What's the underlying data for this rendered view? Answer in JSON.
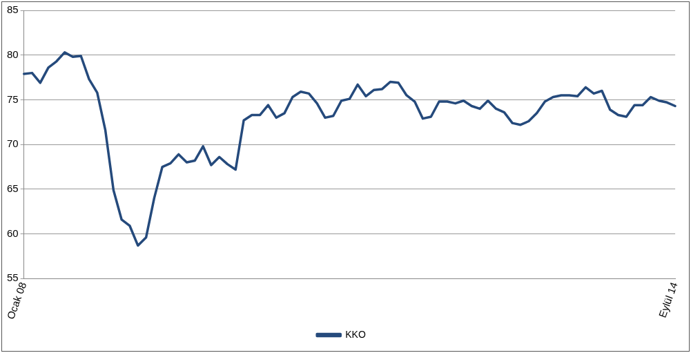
{
  "chart_data": {
    "type": "line",
    "categories": [
      "Ocak 08",
      null,
      null,
      null,
      null,
      null,
      null,
      null,
      null,
      null,
      null,
      null,
      null,
      null,
      null,
      null,
      null,
      null,
      null,
      null,
      null,
      null,
      null,
      null,
      null,
      null,
      null,
      null,
      null,
      null,
      null,
      null,
      null,
      null,
      null,
      null,
      null,
      null,
      null,
      null,
      null,
      null,
      null,
      null,
      null,
      null,
      null,
      null,
      null,
      null,
      null,
      null,
      null,
      null,
      null,
      null,
      null,
      null,
      null,
      null,
      null,
      null,
      null,
      null,
      null,
      null,
      null,
      null,
      null,
      null,
      null,
      null,
      null,
      null,
      null,
      null,
      null,
      null,
      null,
      null,
      "Eylül 14"
    ],
    "series": [
      {
        "name": "KKO",
        "color": "#254a7c",
        "values": [
          77.9,
          78.0,
          76.9,
          78.6,
          79.3,
          80.3,
          79.8,
          79.9,
          77.3,
          75.8,
          71.6,
          64.9,
          61.6,
          60.9,
          58.7,
          59.6,
          64.0,
          67.5,
          67.9,
          68.9,
          68.0,
          68.2,
          69.8,
          67.7,
          68.6,
          67.8,
          67.2,
          72.7,
          73.3,
          73.3,
          74.4,
          73.0,
          73.5,
          75.3,
          75.9,
          75.7,
          74.6,
          73.0,
          73.2,
          74.9,
          75.1,
          76.7,
          75.4,
          76.1,
          76.2,
          77.0,
          76.9,
          75.5,
          74.8,
          72.9,
          73.1,
          74.8,
          74.8,
          74.6,
          74.9,
          74.3,
          74.0,
          74.9,
          74.0,
          73.6,
          72.4,
          72.2,
          72.6,
          73.5,
          74.8,
          75.3,
          75.5,
          75.5,
          75.4,
          76.4,
          75.7,
          76.0,
          73.9,
          73.3,
          73.1,
          74.4,
          74.4,
          75.3,
          74.9,
          74.7,
          74.3
        ]
      }
    ],
    "ylim": [
      55,
      85
    ],
    "yticks": [
      55,
      60,
      65,
      70,
      75,
      80,
      85
    ],
    "grid": "y",
    "legend": "bottom",
    "marker": "none",
    "line_style": "solid"
  }
}
